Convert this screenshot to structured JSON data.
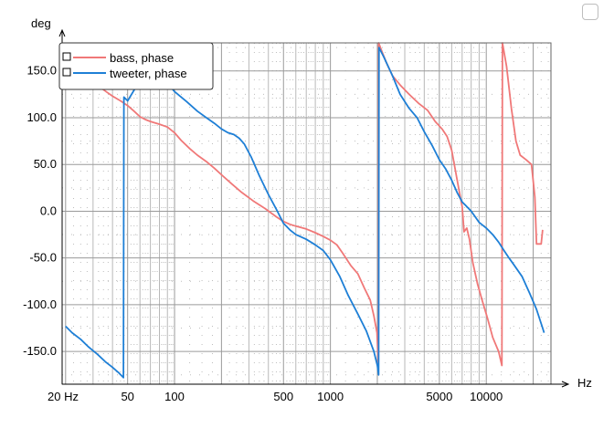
{
  "chart_data": {
    "type": "line",
    "ylabel": "deg",
    "xlabel": "Hz",
    "x_scale": "log",
    "xlim": [
      19,
      26000
    ],
    "ylim": [
      -185,
      180
    ],
    "grid": true,
    "legend_position": "top-left",
    "x_tick_labels": [
      {
        "value": 20,
        "label": "20 Hz"
      },
      {
        "value": 50,
        "label": "50"
      },
      {
        "value": 100,
        "label": "100"
      },
      {
        "value": 500,
        "label": "500"
      },
      {
        "value": 1000,
        "label": "1000"
      },
      {
        "value": 5000,
        "label": "5000"
      },
      {
        "value": 10000,
        "label": "10000"
      }
    ],
    "y_tick_labels": [
      {
        "value": 150,
        "label": "150.0"
      },
      {
        "value": 100,
        "label": "100.0"
      },
      {
        "value": 50,
        "label": "50.0"
      },
      {
        "value": 0,
        "label": "0.0"
      },
      {
        "value": -50,
        "label": "-50.0"
      },
      {
        "value": -100,
        "label": "-100.0"
      },
      {
        "value": -150,
        "label": "-150.0"
      }
    ],
    "series": [
      {
        "name": "bass, phase",
        "color": "#f07878",
        "points": [
          [
            28,
            150
          ],
          [
            30,
            140
          ],
          [
            33,
            133
          ],
          [
            37,
            127
          ],
          [
            40,
            123
          ],
          [
            45,
            118
          ],
          [
            50,
            113
          ],
          [
            55,
            107
          ],
          [
            60,
            101
          ],
          [
            65,
            98
          ],
          [
            70,
            96
          ],
          [
            80,
            93
          ],
          [
            90,
            90
          ],
          [
            100,
            84
          ],
          [
            110,
            76
          ],
          [
            125,
            67
          ],
          [
            140,
            60
          ],
          [
            160,
            53
          ],
          [
            180,
            46
          ],
          [
            200,
            39
          ],
          [
            230,
            30
          ],
          [
            270,
            20
          ],
          [
            320,
            11
          ],
          [
            380,
            3
          ],
          [
            450,
            -6
          ],
          [
            500,
            -11
          ],
          [
            550,
            -14
          ],
          [
            600,
            -16
          ],
          [
            700,
            -19
          ],
          [
            800,
            -23
          ],
          [
            900,
            -27
          ],
          [
            1000,
            -31
          ],
          [
            1100,
            -36
          ],
          [
            1200,
            -45
          ],
          [
            1350,
            -58
          ],
          [
            1500,
            -67
          ],
          [
            1650,
            -82
          ],
          [
            1800,
            -95
          ],
          [
            1900,
            -112
          ],
          [
            1990,
            -130
          ],
          [
            2030,
            -165
          ],
          [
            2040,
            180
          ],
          [
            2150,
            170
          ],
          [
            2300,
            158
          ],
          [
            2500,
            145
          ],
          [
            2800,
            135
          ],
          [
            3200,
            125
          ],
          [
            3700,
            115
          ],
          [
            4200,
            108
          ],
          [
            4700,
            96
          ],
          [
            5200,
            88
          ],
          [
            5600,
            80
          ],
          [
            6000,
            65
          ],
          [
            6400,
            40
          ],
          [
            6700,
            22
          ],
          [
            7000,
            5
          ],
          [
            7200,
            -22
          ],
          [
            7500,
            -18
          ],
          [
            7800,
            -30
          ],
          [
            8200,
            -55
          ],
          [
            8800,
            -78
          ],
          [
            9400,
            -95
          ],
          [
            10200,
            -115
          ],
          [
            11000,
            -135
          ],
          [
            12000,
            -150
          ],
          [
            12600,
            -165
          ],
          [
            12700,
            180
          ],
          [
            13500,
            155
          ],
          [
            14500,
            110
          ],
          [
            15500,
            75
          ],
          [
            16500,
            60
          ],
          [
            18000,
            55
          ],
          [
            19500,
            50
          ],
          [
            20500,
            15
          ],
          [
            21000,
            -35
          ],
          [
            22500,
            -35
          ],
          [
            23000,
            -20
          ]
        ]
      },
      {
        "name": "tweeter, phase",
        "color": "#1e7fd6",
        "points": [
          [
            20,
            -123
          ],
          [
            22,
            -130
          ],
          [
            25,
            -137
          ],
          [
            28,
            -145
          ],
          [
            32,
            -153
          ],
          [
            36,
            -161
          ],
          [
            40,
            -167
          ],
          [
            44,
            -173
          ],
          [
            47,
            -178
          ],
          [
            47.3,
            122
          ],
          [
            50,
            118
          ],
          [
            60,
            140
          ],
          [
            70,
            158
          ],
          [
            75,
            160
          ],
          [
            80,
            148
          ],
          [
            90,
            137
          ],
          [
            100,
            128
          ],
          [
            120,
            117
          ],
          [
            140,
            107
          ],
          [
            160,
            100
          ],
          [
            180,
            94
          ],
          [
            200,
            88
          ],
          [
            220,
            84
          ],
          [
            240,
            82
          ],
          [
            260,
            78
          ],
          [
            280,
            72
          ],
          [
            310,
            58
          ],
          [
            350,
            38
          ],
          [
            400,
            18
          ],
          [
            450,
            2
          ],
          [
            500,
            -13
          ],
          [
            550,
            -20
          ],
          [
            600,
            -25
          ],
          [
            700,
            -30
          ],
          [
            800,
            -36
          ],
          [
            900,
            -42
          ],
          [
            1000,
            -52
          ],
          [
            1150,
            -70
          ],
          [
            1300,
            -90
          ],
          [
            1500,
            -110
          ],
          [
            1700,
            -128
          ],
          [
            1900,
            -150
          ],
          [
            2000,
            -165
          ],
          [
            2040,
            -175
          ],
          [
            2050,
            175
          ],
          [
            2200,
            165
          ],
          [
            2500,
            145
          ],
          [
            2800,
            125
          ],
          [
            3200,
            110
          ],
          [
            3600,
            100
          ],
          [
            4000,
            85
          ],
          [
            4500,
            70
          ],
          [
            5000,
            55
          ],
          [
            5500,
            45
          ],
          [
            6000,
            33
          ],
          [
            6500,
            20
          ],
          [
            7000,
            10
          ],
          [
            8000,
            0
          ],
          [
            9000,
            -12
          ],
          [
            10000,
            -18
          ],
          [
            11000,
            -25
          ],
          [
            12000,
            -33
          ],
          [
            13000,
            -42
          ],
          [
            14000,
            -50
          ],
          [
            15000,
            -57
          ],
          [
            17000,
            -70
          ],
          [
            19000,
            -88
          ],
          [
            21000,
            -105
          ],
          [
            23000,
            -125
          ],
          [
            23500,
            -130
          ]
        ]
      }
    ]
  }
}
